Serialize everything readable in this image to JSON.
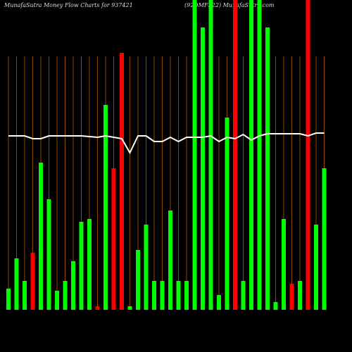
{
  "chart_data": {
    "type": "bar",
    "title": "MunafaSutra  Money Flow  Charts for 937421",
    "subtitle": "(92DMFL22) MunafaSutra.com",
    "categories": [
      null,
      null,
      null,
      null,
      null,
      null,
      null,
      null,
      null,
      null,
      null,
      null,
      null,
      null,
      null,
      null,
      null,
      null,
      null,
      null,
      null,
      null,
      null,
      null,
      null,
      null,
      null,
      null,
      null,
      null,
      null,
      null,
      null,
      null,
      null,
      null,
      null,
      null,
      null,
      null
    ],
    "values": [
      30,
      73,
      41,
      81,
      209,
      157,
      27,
      41,
      69,
      125,
      129,
      5,
      291,
      201,
      365,
      5,
      85,
      121,
      41,
      41,
      141,
      41,
      41,
      440,
      401,
      440,
      21,
      273,
      440,
      41,
      440,
      440,
      401,
      11,
      129,
      37,
      41,
      440,
      121,
      201
    ],
    "colors": [
      "#00ff00",
      "#00ff00",
      "#00ff00",
      "#ff0000",
      "#00ff00",
      "#00ff00",
      "#00ff00",
      "#00ff00",
      "#00ff00",
      "#00ff00",
      "#00ff00",
      "#ff0000",
      "#00ff00",
      "#ff0000",
      "#ff0000",
      "#00ff00",
      "#00ff00",
      "#00ff00",
      "#00ff00",
      "#00ff00",
      "#00ff00",
      "#00ff00",
      "#00ff00",
      "#00ff00",
      "#00ff00",
      "#00ff00",
      "#00ff00",
      "#00ff00",
      "#ff0000",
      "#00ff00",
      "#00ff00",
      "#00ff00",
      "#00ff00",
      "#00ff00",
      "#00ff00",
      "#ff0000",
      "#00ff00",
      "#ff0000",
      "#00ff00",
      "#00ff00"
    ],
    "line": {
      "color": "#ffffff",
      "values": [
        247,
        247,
        247,
        243,
        243,
        247,
        247,
        247,
        247,
        247,
        246,
        245,
        247,
        245,
        243,
        223,
        247,
        247,
        239,
        239,
        245,
        239,
        245,
        245,
        245,
        247,
        239,
        245,
        243,
        249,
        241,
        247,
        250,
        250,
        250,
        250,
        250,
        247,
        251,
        251
      ]
    },
    "ylim": [
      0,
      440
    ]
  }
}
